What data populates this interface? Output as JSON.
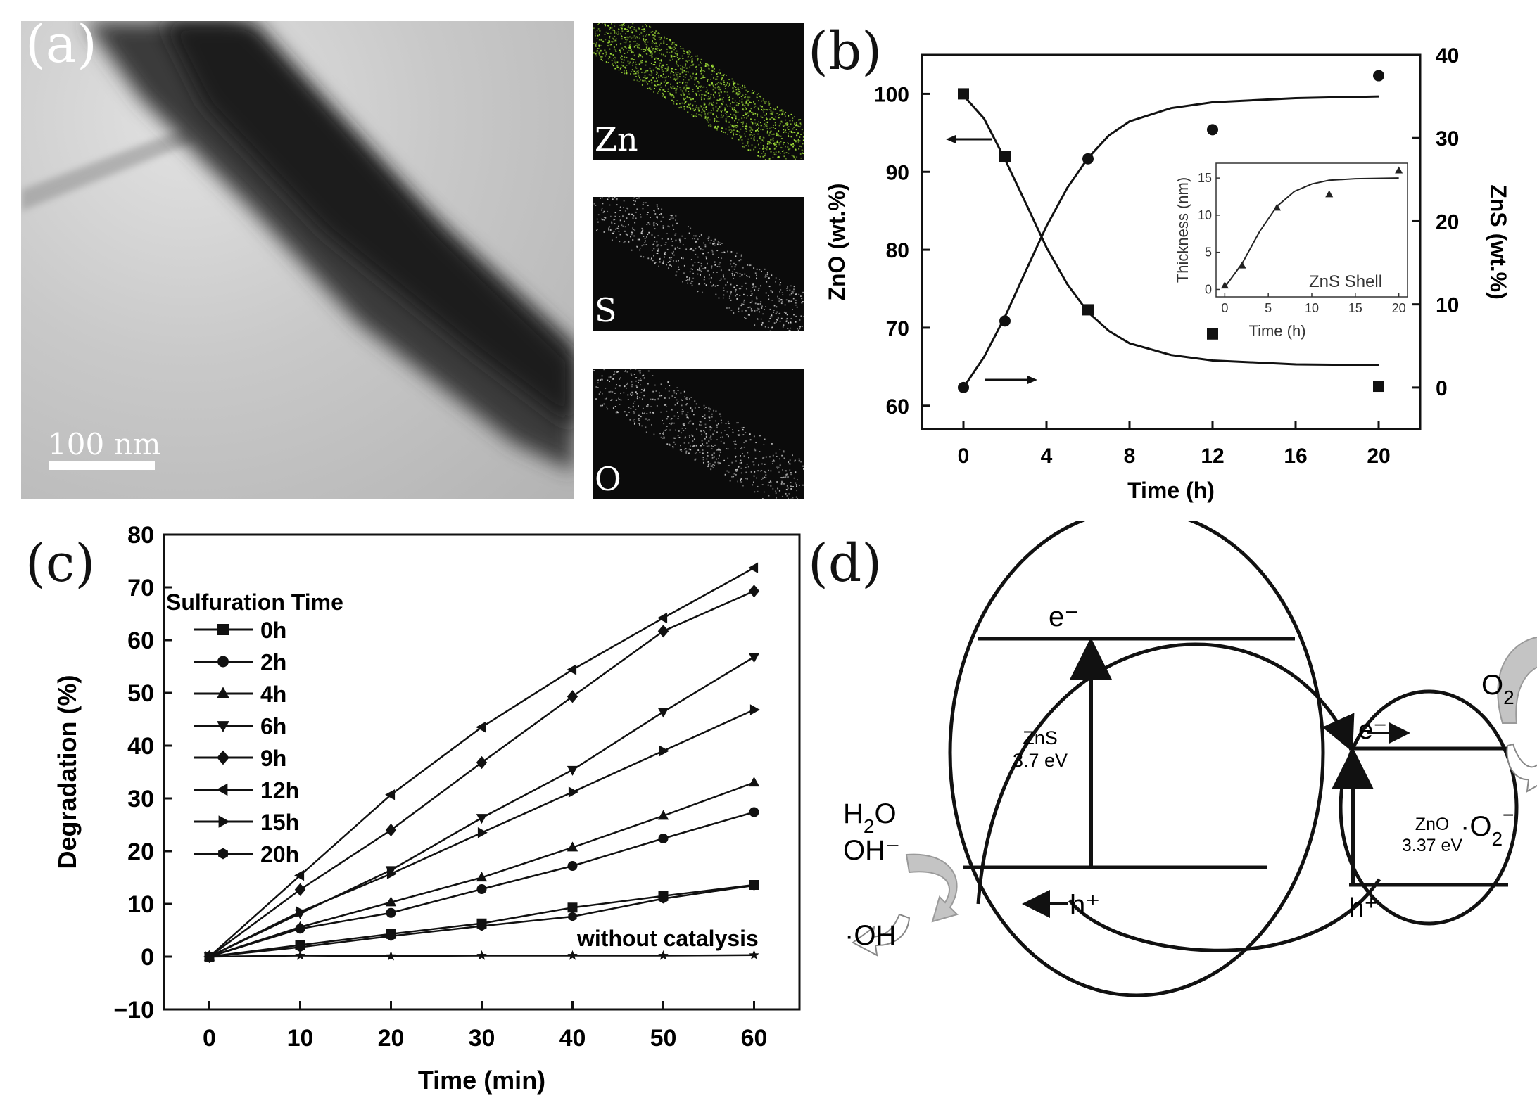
{
  "panel_a": {
    "letter": "(a)",
    "scale_bar": "100 nm",
    "maps": [
      {
        "label": "Zn",
        "color": "#a6e83a"
      },
      {
        "label": "S",
        "color": "#d8d8d8"
      },
      {
        "label": "O",
        "color": "#cfcfcf"
      }
    ]
  },
  "panel_b": {
    "letter": "(b)"
  },
  "panel_c": {
    "letter": "(c)"
  },
  "panel_d": {
    "letter": "(d)"
  },
  "chart_data": [
    {
      "id": "b",
      "type": "scatter",
      "xlabel": "Time (h)",
      "ylabel": "ZnO (wt.%)",
      "y2label": "ZnS (wt.%)",
      "xlim": [
        -2,
        22
      ],
      "ylim": [
        57,
        105
      ],
      "y2lim": [
        -5,
        40
      ],
      "xticks": [
        0,
        4,
        8,
        12,
        16,
        20
      ],
      "yticks": [
        60,
        70,
        80,
        90,
        100
      ],
      "y2ticks": [
        0,
        10,
        20,
        30,
        40
      ],
      "series": [
        {
          "marker": "square",
          "axis": "left",
          "x": [
            0,
            2,
            6,
            12,
            20
          ],
          "y": [
            100,
            92,
            72.3,
            69.2,
            62.5
          ]
        },
        {
          "marker": "circle",
          "axis": "right",
          "x": [
            0,
            2,
            6,
            12,
            20
          ],
          "y": [
            0,
            8,
            27.5,
            31,
            37.5
          ]
        }
      ],
      "fits": [
        {
          "axis": "left",
          "x": [
            0,
            1,
            2,
            3,
            4,
            5,
            6,
            7,
            8,
            10,
            12,
            16,
            20
          ],
          "y": [
            99.8,
            96.8,
            91.6,
            86.0,
            80.3,
            75.6,
            72.0,
            69.6,
            68.0,
            66.5,
            65.8,
            65.3,
            65.2
          ]
        },
        {
          "axis": "right",
          "x": [
            0,
            1,
            2,
            3,
            4,
            5,
            6,
            7,
            8,
            10,
            12,
            16,
            20
          ],
          "y": [
            0,
            3.7,
            8.5,
            14.0,
            19.4,
            24.0,
            27.6,
            30.3,
            32.0,
            33.6,
            34.3,
            34.8,
            35.0
          ]
        }
      ],
      "inset": {
        "xlabel": "Time (h)",
        "ylabel": "Thickness (nm)",
        "label": "ZnS Shell",
        "xlim": [
          -1,
          21
        ],
        "ylim": [
          -1,
          17
        ],
        "xticks": [
          0,
          5,
          10,
          15,
          20
        ],
        "yticks": [
          0,
          5,
          10,
          15
        ],
        "x": [
          0,
          2,
          6,
          12,
          20
        ],
        "y": [
          0.5,
          3.2,
          11,
          12.8,
          16
        ],
        "fit_x": [
          0,
          2,
          4,
          6,
          8,
          10,
          12,
          15,
          20
        ],
        "fit_y": [
          0.3,
          3.5,
          7.8,
          11.2,
          13.2,
          14.2,
          14.7,
          14.9,
          15.0
        ]
      }
    },
    {
      "id": "c",
      "type": "line",
      "xlabel": "Time (min)",
      "ylabel": "Degradation (%)",
      "xlim": [
        -5,
        65
      ],
      "ylim": [
        -10,
        80
      ],
      "xticks": [
        0,
        10,
        20,
        30,
        40,
        50,
        60
      ],
      "yticks": [
        -10,
        0,
        10,
        20,
        30,
        40,
        50,
        60,
        70,
        80
      ],
      "legend_title": "Sulfuration Time",
      "annotation": "without catalysis",
      "series": [
        {
          "name": "0h",
          "marker": "square",
          "x": [
            0,
            10,
            20,
            30,
            40,
            50,
            60
          ],
          "y": [
            0,
            2.2,
            4.3,
            6.3,
            9.3,
            11.5,
            13.6
          ]
        },
        {
          "name": "2h",
          "marker": "circle",
          "x": [
            0,
            10,
            20,
            30,
            40,
            50,
            60
          ],
          "y": [
            0,
            5.3,
            8.3,
            12.8,
            17.2,
            22.4,
            27.4
          ]
        },
        {
          "name": "4h",
          "marker": "triangle-up",
          "x": [
            0,
            10,
            20,
            30,
            40,
            50,
            60
          ],
          "y": [
            0,
            5.6,
            10.3,
            15,
            20.7,
            26.7,
            33
          ]
        },
        {
          "name": "6h",
          "marker": "triangle-down",
          "x": [
            0,
            10,
            20,
            30,
            40,
            50,
            60
          ],
          "y": [
            0,
            8.2,
            16.4,
            26.3,
            35.4,
            46.4,
            56.8
          ]
        },
        {
          "name": "9h",
          "marker": "diamond",
          "x": [
            0,
            10,
            20,
            30,
            40,
            50,
            60
          ],
          "y": [
            0,
            12.7,
            24,
            36.8,
            49.3,
            61.7,
            69.3
          ]
        },
        {
          "name": "12h",
          "marker": "triangle-left",
          "x": [
            0,
            10,
            20,
            30,
            40,
            50,
            60
          ],
          "y": [
            0,
            15.4,
            30.7,
            43.5,
            54.4,
            64.2,
            73.7
          ]
        },
        {
          "name": "15h",
          "marker": "triangle-right",
          "x": [
            0,
            10,
            20,
            30,
            40,
            50,
            60
          ],
          "y": [
            0,
            8.5,
            15.7,
            23.5,
            31.2,
            39,
            46.8
          ]
        },
        {
          "name": "20h",
          "marker": "hexagon",
          "x": [
            0,
            10,
            20,
            30,
            40,
            50,
            60
          ],
          "y": [
            0,
            1.8,
            3.9,
            5.8,
            7.6,
            11,
            13.5
          ]
        },
        {
          "marker": "star",
          "x": [
            0,
            10,
            20,
            30,
            40,
            50,
            60
          ],
          "y": [
            0,
            0.2,
            0.1,
            0.2,
            0.2,
            0.2,
            0.3
          ]
        }
      ]
    }
  ],
  "diagram_d": {
    "e_zns": "e⁻",
    "e_zno": "e⁻",
    "h_zns": "h⁺",
    "h_zno": "h⁺",
    "zns_name": "ZnS",
    "zns_gap": "3.7 eV",
    "zno_name": "ZnO",
    "zno_gap": "3.37 eV",
    "o2": "O",
    "o2_sub": "2",
    "o2_minus": "·O",
    "o2_minus_sub": "2",
    "o2_minus_sup": "−",
    "h2o_h": "H",
    "h2o_sub": "2",
    "h2o_o": "O",
    "oh_minus": "OH⁻",
    "oh_radical": "·OH"
  }
}
